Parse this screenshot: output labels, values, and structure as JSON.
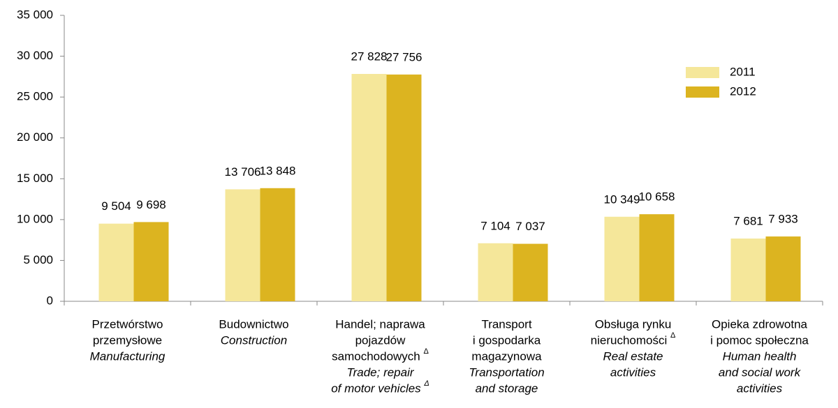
{
  "chart_data": {
    "type": "bar",
    "categories": [
      {
        "pl": [
          "Przetwórstwo",
          "przemysłowe"
        ],
        "en": [
          "Manufacturing"
        ]
      },
      {
        "pl": [
          "Budownictwo"
        ],
        "en": [
          "Construction"
        ]
      },
      {
        "pl": [
          "Handel; naprawa",
          "pojazdów",
          "samochodowych Δ"
        ],
        "en": [
          "Trade; repair",
          "of motor vehicles Δ"
        ]
      },
      {
        "pl": [
          "Transport",
          "i gospodarka",
          "magazynowa"
        ],
        "en": [
          "Transportation",
          "and storage"
        ]
      },
      {
        "pl": [
          "Obsługa rynku",
          "nieruchomości Δ"
        ],
        "en": [
          "Real estate",
          "activities"
        ]
      },
      {
        "pl": [
          "Opieka zdrowotna",
          "i pomoc społeczna"
        ],
        "en": [
          "Human health",
          "and social work",
          "activities"
        ]
      }
    ],
    "series": [
      {
        "name": "2011",
        "color": "#f5e79a",
        "values": [
          9504,
          13706,
          27828,
          7104,
          10349,
          7681
        ],
        "value_labels": [
          "9 504",
          "13 706",
          "27 828",
          "7 104",
          "10 349",
          "7 681"
        ]
      },
      {
        "name": "2012",
        "color": "#dcb420",
        "values": [
          9698,
          13848,
          27756,
          7037,
          10658,
          7933
        ],
        "value_labels": [
          "9 698",
          "13 848",
          "27 756",
          "7 037",
          "10 658",
          "7 933"
        ]
      }
    ],
    "ylim": [
      0,
      35000
    ],
    "yticks": [
      0,
      {
        "value": 5000,
        "label": "5 000"
      },
      {
        "value": 10000,
        "label": "10 000"
      },
      {
        "value": 15000,
        "label": "15 000"
      },
      {
        "value": 20000,
        "label": "20 000"
      },
      {
        "value": 25000,
        "label": "25 000"
      },
      {
        "value": 30000,
        "label": "30 000"
      },
      {
        "value": 35000,
        "label": "35 000"
      }
    ],
    "grid": false,
    "legend": "upper right"
  }
}
